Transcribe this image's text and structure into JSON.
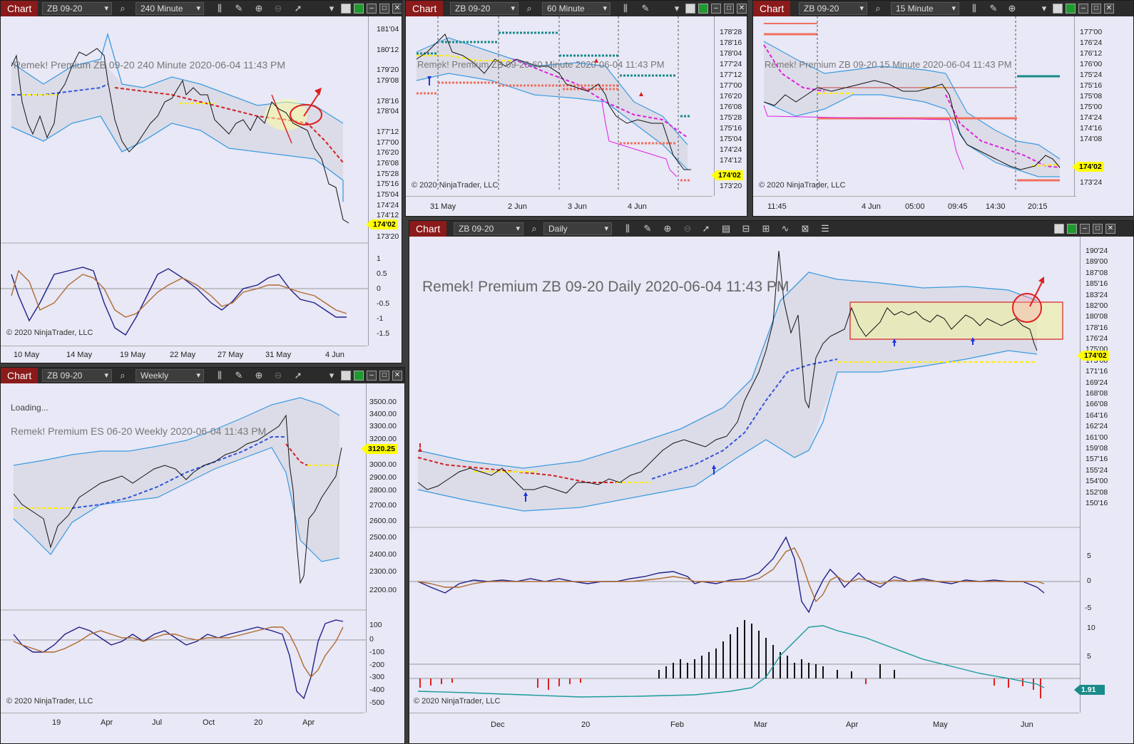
{
  "windows": {
    "w240": {
      "tab": "Chart",
      "instrument": "ZB 09-20",
      "interval": "240 Minute",
      "title": "Remek!  Premium  ZB 09-20  240 Minute  2020-06-04 11:43 PM",
      "price_labels": [
        "181'04",
        "180'12",
        "179'20",
        "179'08",
        "178'16",
        "178'04",
        "177'12",
        "177'00",
        "176'20",
        "176'08",
        "175'28",
        "175'16",
        "175'04",
        "174'24",
        "174'12",
        "173'20"
      ],
      "price_tag": "174'02",
      "osc_labels": [
        "1",
        "0.5",
        "0",
        "-0.5",
        "-1",
        "-1.5"
      ],
      "dates": [
        "10 May",
        "14 May",
        "19 May",
        "22 May",
        "27 May",
        "31 May",
        "4 Jun"
      ],
      "copyright": "© 2020 NinjaTrader, LLC"
    },
    "w60": {
      "tab": "Chart",
      "instrument": "ZB 09-20",
      "interval": "60 Minute",
      "title": "Remek!  Premium  ZB 09-20  60 Minute  2020-06-04 11:43 PM",
      "price_labels": [
        "178'28",
        "178'16",
        "178'04",
        "177'24",
        "177'12",
        "177'00",
        "176'20",
        "176'08",
        "175'28",
        "175'16",
        "175'04",
        "174'24",
        "174'12",
        "173'20"
      ],
      "price_tag": "174'02",
      "dates": [
        "31 May",
        "2 Jun",
        "3 Jun",
        "4 Jun"
      ],
      "copyright": "© 2020 NinjaTrader, LLC"
    },
    "w15": {
      "tab": "Chart",
      "instrument": "ZB 09-20",
      "interval": "15 Minute",
      "title": "Remek!  Premium  ZB 09-20  15 Minute  2020-06-04 11:43 PM",
      "price_labels": [
        "177'00",
        "176'24",
        "176'12",
        "176'00",
        "175'24",
        "175'16",
        "175'08",
        "175'00",
        "174'24",
        "174'16",
        "174'08",
        "173'24"
      ],
      "price_tag": "174'02",
      "dates": [
        "11:45",
        "4 Jun",
        "05:00",
        "09:45",
        "14:30",
        "20:15"
      ],
      "copyright": "© 2020 NinjaTrader, LLC"
    },
    "wWeekly": {
      "tab": "Chart",
      "instrument": "ZB 09-20",
      "interval": "Weekly",
      "loading": "Loading...",
      "title": "Remek!  Premium  ES 06-20  Weekly  2020-06-04 11:43 PM",
      "price_labels": [
        "3500.00",
        "3400.00",
        "3300.00",
        "3200.00",
        "3000.00",
        "2900.00",
        "2800.00",
        "2700.00",
        "2600.00",
        "2500.00",
        "2400.00",
        "2300.00",
        "2200.00"
      ],
      "price_tag": "3120.25",
      "osc_labels": [
        "100",
        "0",
        "-100",
        "-200",
        "-300",
        "-400",
        "-500"
      ],
      "dates": [
        "19",
        "Apr",
        "Jul",
        "Oct",
        "20",
        "Apr"
      ],
      "copyright": "© 2020 NinjaTrader, LLC"
    },
    "wDaily": {
      "tab": "Chart",
      "instrument": "ZB 09-20",
      "interval": "Daily",
      "title": "Remek!  Premium  ZB 09-20  Daily  2020-06-04 11:43 PM",
      "price_labels": [
        "190'24",
        "189'00",
        "187'08",
        "185'16",
        "183'24",
        "182'00",
        "180'08",
        "178'16",
        "176'24",
        "175'00",
        "173'08",
        "171'16",
        "169'24",
        "168'08",
        "166'08",
        "164'16",
        "162'24",
        "161'00",
        "159'08",
        "157'16",
        "155'24",
        "154'00",
        "152'08",
        "150'16"
      ],
      "price_tag": "174'02",
      "osc_labels": [
        "5",
        "0",
        "-5"
      ],
      "vol_labels": [
        "10",
        "5"
      ],
      "vol_tag": "1.91",
      "dates": [
        "Dec",
        "20",
        "Feb",
        "Mar",
        "Apr",
        "May",
        "Jun"
      ],
      "copyright": "© 2020 NinjaTrader, LLC"
    }
  }
}
